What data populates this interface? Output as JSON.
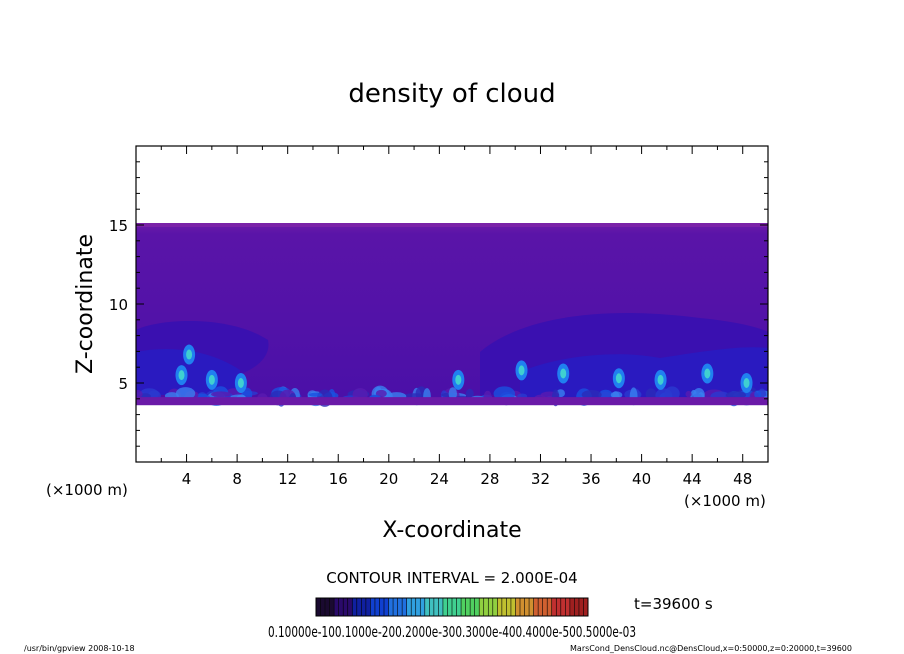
{
  "chart_data": {
    "type": "heatmap",
    "title": "density of cloud",
    "xlabel": "X-coordinate",
    "ylabel": "Z-coordinate",
    "x_unit_left": "(×1000 m)",
    "x_unit_right": "(×1000 m)",
    "xlim": [
      0,
      50
    ],
    "ylim": [
      0,
      20
    ],
    "x_ticks": [
      "4",
      "8",
      "12",
      "16",
      "20",
      "24",
      "28",
      "32",
      "36",
      "40",
      "44",
      "48"
    ],
    "y_ticks": [
      "5",
      "10",
      "15"
    ],
    "field_z_range": [
      3.6,
      15.0
    ],
    "contour_interval_label": "CONTOUR INTERVAL = 2.000E-04",
    "time_label": "t=39600 s",
    "colorbar": {
      "tick_label_text": "0.10000e-100.1000e-200.2000e-300.3000e-400.4000e-500.5000e-03",
      "colors": [
        "#1a0a30",
        "#2a0a6a",
        "#1020a0",
        "#1040d0",
        "#2070e0",
        "#30a0e0",
        "#40c0c0",
        "#40d090",
        "#50d060",
        "#90d040",
        "#c0c030",
        "#d09030",
        "#d06030",
        "#c03030",
        "#a02020"
      ]
    },
    "footer_left": "/usr/bin/gpview   2008-10-18",
    "footer_right": "MarsCond_DensCloud.nc@DensCloud,x=0:50000,z=0:20000,t=39600"
  }
}
